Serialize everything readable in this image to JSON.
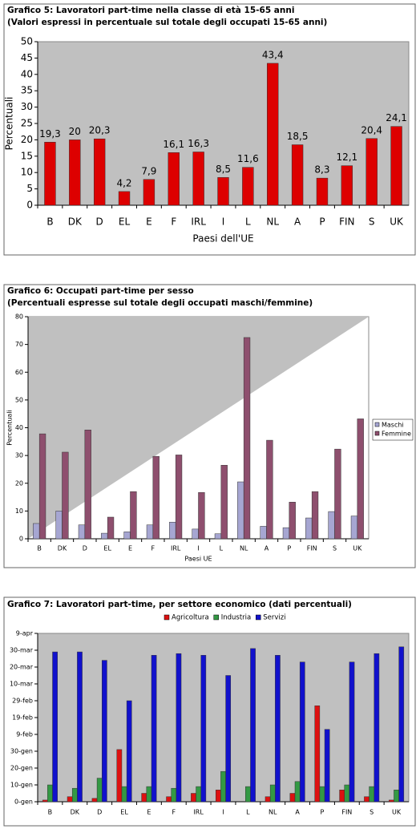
{
  "chart_data": [
    {
      "type": "bar",
      "title": "Grafico 5: Lavoratori part-time nella classe di età 15-65 anni",
      "subtitle": "(Valori espressi in percentuale sul totale degli occupati 15-65 anni)",
      "x_label": "Paesi dell'UE",
      "y_label": "Percentuali",
      "categories": [
        "B",
        "DK",
        "D",
        "EL",
        "E",
        "F",
        "IRL",
        "I",
        "L",
        "NL",
        "A",
        "P",
        "FIN",
        "S",
        "UK"
      ],
      "values": [
        19.3,
        20,
        20.3,
        4.2,
        7.9,
        16.1,
        16.3,
        8.5,
        11.6,
        43.4,
        18.5,
        8.3,
        12.1,
        20.4,
        24.1
      ],
      "value_labels": [
        "19,3",
        "20",
        "20,3",
        "4,2",
        "7,9",
        "16,1",
        "16,3",
        "8,5",
        "11,6",
        "43,4",
        "18,5",
        "8,3",
        "12,1",
        "20,4",
        "24,1"
      ],
      "color": "#dd0000",
      "ylim": [
        0,
        50
      ],
      "yticks": [
        0,
        5,
        10,
        15,
        20,
        25,
        30,
        35,
        40,
        45,
        50
      ],
      "grid": false
    },
    {
      "type": "bar",
      "title": "Grafico 6: Occupati part-time per sesso",
      "subtitle": "(Percentuali espresse sul totale degli occupati maschi/femmine)",
      "x_label": "Paesi UE",
      "y_label": "Percentuali",
      "categories": [
        "B",
        "DK",
        "D",
        "EL",
        "E",
        "F",
        "IRL",
        "I",
        "L",
        "NL",
        "A",
        "P",
        "FIN",
        "S",
        "UK"
      ],
      "series": [
        {
          "name": "Maschi",
          "color": "#a6a6d2",
          "values": [
            5.5,
            10,
            5,
            2,
            2.5,
            5,
            6,
            3.5,
            1.8,
            20.5,
            4.5,
            4,
            7.5,
            9.8,
            8.2
          ]
        },
        {
          "name": "Femmine",
          "color": "#8e4f6e",
          "values": [
            37.8,
            31.2,
            39.2,
            7.8,
            17,
            29.7,
            30.2,
            16.7,
            26.5,
            72.5,
            35.5,
            13.2,
            17,
            32.3,
            43.2
          ]
        }
      ],
      "ylim": [
        0,
        80
      ],
      "yticks": [
        0,
        10,
        20,
        30,
        40,
        50,
        60,
        70,
        80
      ],
      "grid": false,
      "legend": "right"
    },
    {
      "type": "bar",
      "title": "Grafico 7: Lavoratori part-time, per settore economico (dati percentuali)",
      "categories": [
        "B",
        "DK",
        "D",
        "EL",
        "E",
        "F",
        "IRL",
        "I",
        "L",
        "NL",
        "A",
        "P",
        "FIN",
        "S",
        "UK"
      ],
      "series": [
        {
          "name": "Agricoltura",
          "color": "#dd1111",
          "values": [
            1,
            3,
            2,
            31,
            5,
            3,
            5,
            7,
            0,
            3,
            5,
            57,
            7,
            3,
            1
          ]
        },
        {
          "name": "Industria",
          "color": "#339944",
          "values": [
            10,
            8,
            14,
            9,
            9,
            8,
            9,
            18,
            9,
            10,
            12,
            9,
            10,
            9,
            7
          ]
        },
        {
          "name": "Servizi",
          "color": "#1111cc",
          "values": [
            89,
            89,
            84,
            60,
            87,
            88,
            87,
            75,
            91,
            87,
            83,
            43,
            83,
            88,
            92
          ]
        }
      ],
      "ylim": [
        0,
        100
      ],
      "yticks": [
        {
          "value": 0,
          "label": "0-gen"
        },
        {
          "value": 10,
          "label": "10-gen"
        },
        {
          "value": 20,
          "label": "20-gen"
        },
        {
          "value": 30,
          "label": "30-gen"
        },
        {
          "value": 40,
          "label": "9-feb"
        },
        {
          "value": 50,
          "label": "19-feb"
        },
        {
          "value": 60,
          "label": "29-feb"
        },
        {
          "value": 70,
          "label": "10-mar"
        },
        {
          "value": 80,
          "label": "20-mar"
        },
        {
          "value": 90,
          "label": "30-mar"
        },
        {
          "value": 100,
          "label": "9-apr"
        }
      ],
      "grid": false,
      "legend": "top"
    }
  ]
}
